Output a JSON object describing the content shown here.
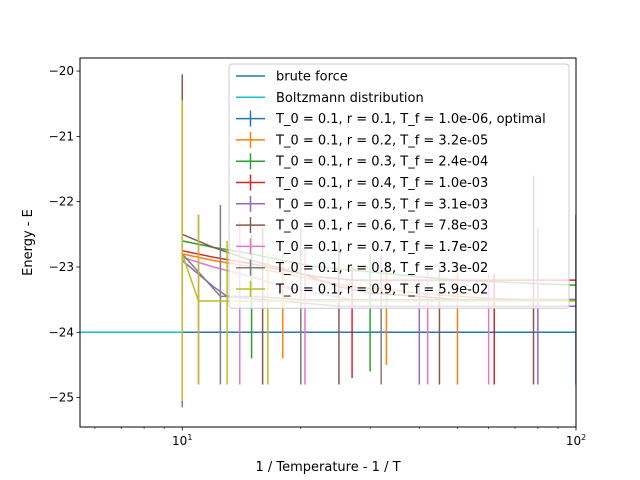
{
  "chart_data": {
    "type": "line",
    "xlabel": "1 / Temperature - 1 / T",
    "ylabel": "Energy - E",
    "xscale": "log",
    "xlim": [
      5.5,
      100
    ],
    "ylim": [
      -25.45,
      -19.8
    ],
    "x_ticks": [
      {
        "value": 10,
        "base": "10",
        "exp": "1"
      },
      {
        "value": 100,
        "base": "10",
        "exp": "2"
      }
    ],
    "y_ticks": [
      {
        "value": -20,
        "label": "−20"
      },
      {
        "value": -21,
        "label": "−21"
      },
      {
        "value": -22,
        "label": "−22"
      },
      {
        "value": -23,
        "label": "−23"
      },
      {
        "value": -24,
        "label": "−24"
      },
      {
        "value": -25,
        "label": "−25"
      }
    ],
    "grid": false,
    "legend_position": "upper right",
    "reference_lines": [
      {
        "name": "brute force",
        "y": -24.0,
        "color": "#1f77b4"
      },
      {
        "name": "Boltzmann distribution",
        "y": -24.0,
        "color": "#17becf"
      }
    ],
    "series": [
      {
        "name": "T_0 = 0.1, r = 0.1, T_f = 1.0e-06, optimal",
        "color": "#1f77b4",
        "x": [
          10,
          100
        ],
        "y": [
          -24.0,
          -24.0
        ],
        "error_bars": [
          {
            "x": 100,
            "low": -24.8,
            "high": -22.2
          }
        ]
      },
      {
        "name": "T_0 = 0.1, r = 0.2, T_f = 3.2e-05",
        "color": "#ff7f0e",
        "x": [
          10,
          12,
          15,
          18,
          22,
          27,
          33,
          40,
          50,
          60,
          75,
          100
        ],
        "y": [
          -22.8,
          -22.9,
          -23.0,
          -23.1,
          -23.2,
          -23.3,
          -23.35,
          -23.4,
          -23.45,
          -23.48,
          -23.5,
          -23.5
        ],
        "error_bars": [
          {
            "x": 10,
            "low": -23.2,
            "high": -22.5
          },
          {
            "x": 18,
            "low": -24.4,
            "high": -22.8
          },
          {
            "x": 33,
            "low": -24.5,
            "high": -22.9
          },
          {
            "x": 50,
            "low": -24.8,
            "high": -23.1
          }
        ]
      },
      {
        "name": "T_0 = 0.1, r = 0.3, T_f = 2.4e-04",
        "color": "#2ca02c",
        "x": [
          10,
          12,
          15,
          18,
          22,
          27,
          33,
          40,
          50,
          60,
          75,
          100
        ],
        "y": [
          -22.6,
          -22.7,
          -22.8,
          -22.9,
          -23.0,
          -23.05,
          -23.1,
          -23.15,
          -23.2,
          -23.22,
          -23.25,
          -23.28
        ],
        "error_bars": [
          {
            "x": 15,
            "low": -24.4,
            "high": -22.5
          },
          {
            "x": 30,
            "low": -24.6,
            "high": -22.8
          }
        ]
      },
      {
        "name": "T_0 = 0.1, r = 0.4, T_f = 1.0e-03",
        "color": "#d62728",
        "x": [
          10,
          12,
          15,
          18,
          22,
          27,
          33,
          40,
          50,
          60,
          75,
          100
        ],
        "y": [
          -22.75,
          -22.85,
          -22.95,
          -23.05,
          -23.15,
          -23.2,
          -23.2,
          -23.2,
          -23.2,
          -23.2,
          -23.2,
          -23.2
        ],
        "error_bars": [
          {
            "x": 27,
            "low": -24.7,
            "high": -23.0
          },
          {
            "x": 62,
            "low": -24.8,
            "high": -23.1
          }
        ]
      },
      {
        "name": "T_0 = 0.1, r = 0.5, T_f = 3.1e-03",
        "color": "#9467bd",
        "x": [
          10,
          12,
          13,
          16,
          20,
          25,
          30,
          40,
          50,
          60,
          80,
          100
        ],
        "y": [
          -22.9,
          -23.3,
          -23.45,
          -23.5,
          -23.55,
          -23.6,
          -23.6,
          -23.6,
          -23.6,
          -23.6,
          -23.6,
          -23.6
        ],
        "error_bars": [
          {
            "x": 10,
            "low": -25.15,
            "high": -22.7
          },
          {
            "x": 20,
            "low": -24.8,
            "high": -23.0
          },
          {
            "x": 40,
            "low": -24.8,
            "high": -23.2
          },
          {
            "x": 80,
            "low": -24.8,
            "high": -22.4
          }
        ]
      },
      {
        "name": "T_0 = 0.1, r = 0.6, T_f = 7.8e-03",
        "color": "#8c564b",
        "x": [
          10,
          12,
          15,
          20,
          25,
          30,
          40,
          50,
          60,
          80,
          100
        ],
        "y": [
          -22.5,
          -22.7,
          -22.9,
          -23.1,
          -23.3,
          -23.4,
          -23.45,
          -23.5,
          -23.5,
          -23.5,
          -23.5
        ],
        "error_bars": [
          {
            "x": 10,
            "low": -23.4,
            "high": -20.05
          },
          {
            "x": 16,
            "low": -24.8,
            "high": -22.4
          },
          {
            "x": 25,
            "low": -24.8,
            "high": -22.6
          },
          {
            "x": 45,
            "low": -24.8,
            "high": -23.0
          },
          {
            "x": 78,
            "low": -24.8,
            "high": -21.6
          }
        ]
      },
      {
        "name": "T_0 = 0.1, r = 0.7, T_f = 1.7e-02",
        "color": "#e377c2",
        "x": [
          10,
          12,
          15,
          18,
          22,
          27,
          33,
          40,
          50,
          60,
          75,
          100
        ],
        "y": [
          -22.85,
          -23.0,
          -23.15,
          -23.3,
          -23.4,
          -23.5,
          -23.5,
          -23.5,
          -23.5,
          -23.5,
          -23.5,
          -23.5
        ],
        "error_bars": [
          {
            "x": 11,
            "low": -24.8,
            "high": -22.2
          },
          {
            "x": 14,
            "low": -24.8,
            "high": -22.3
          },
          {
            "x": 20.5,
            "low": -24.8,
            "high": -22.7
          },
          {
            "x": 42,
            "low": -24.8,
            "high": -23.0
          },
          {
            "x": 60,
            "low": -24.8,
            "high": -23.1
          }
        ]
      },
      {
        "name": "T_0 = 0.1, r = 0.8, T_f = 3.3e-02",
        "color": "#7f7f7f",
        "x": [
          10,
          12.5,
          15,
          20,
          25,
          30,
          40,
          50,
          60,
          80,
          100
        ],
        "y": [
          -22.8,
          -23.45,
          -23.45,
          -23.5,
          -23.5,
          -23.5,
          -23.5,
          -23.5,
          -23.5,
          -23.5,
          -23.5
        ],
        "error_bars": [
          {
            "x": 12.5,
            "low": -24.8,
            "high": -22.05
          },
          {
            "x": 20,
            "low": -24.8,
            "high": -22.4
          },
          {
            "x": 32,
            "low": -24.8,
            "high": -22.8
          }
        ]
      },
      {
        "name": "T_0 = 0.1, r = 0.9, T_f = 5.9e-02",
        "color": "#bcbd22",
        "x": [
          10,
          11,
          12,
          14,
          16,
          20,
          25,
          30,
          40,
          50,
          60,
          80,
          100
        ],
        "y": [
          -22.8,
          -23.52,
          -23.52,
          -23.52,
          -23.52,
          -23.52,
          -23.52,
          -23.52,
          -23.52,
          -23.52,
          -23.52,
          -23.52,
          -23.52
        ],
        "error_bars": [
          {
            "x": 10,
            "low": -25.05,
            "high": -20.45
          },
          {
            "x": 11,
            "low": -24.8,
            "high": -22.2
          },
          {
            "x": 13,
            "low": -24.8,
            "high": -22.6
          },
          {
            "x": 16.5,
            "low": -24.8,
            "high": -22.8
          }
        ]
      }
    ]
  }
}
